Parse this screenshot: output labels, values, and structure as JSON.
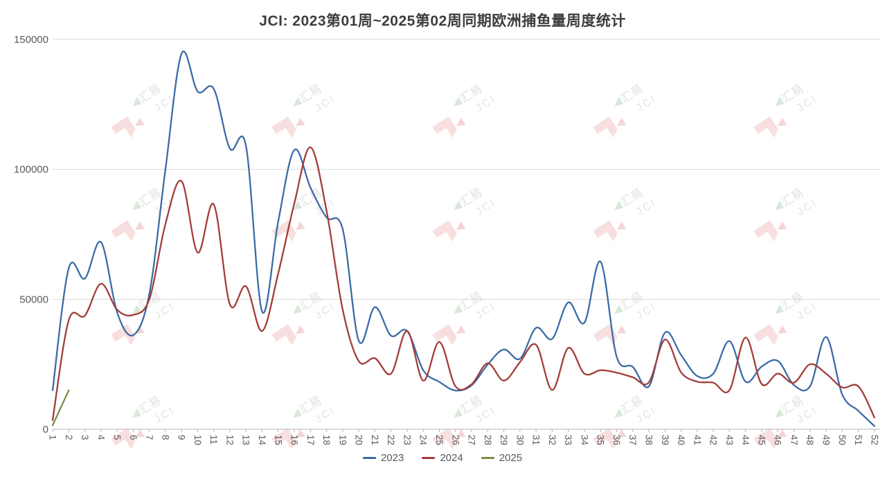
{
  "title": "JCI: 2023第01周~2025第02周同期欧洲捕鱼量周度统计",
  "watermark": {
    "cn": "汇易",
    "en": "JCI"
  },
  "legend": [
    {
      "label": "2023",
      "color": "#3A6BA5"
    },
    {
      "label": "2024",
      "color": "#A23C39"
    },
    {
      "label": "2025",
      "color": "#7C8B42"
    }
  ],
  "chart_data": {
    "type": "line",
    "title": "JCI: 2023第01周~2025第02周同期欧洲捕鱼量周度统计",
    "xlabel": "",
    "ylabel": "",
    "x": [
      1,
      2,
      3,
      4,
      5,
      6,
      7,
      8,
      9,
      10,
      11,
      12,
      13,
      14,
      15,
      16,
      17,
      18,
      19,
      20,
      21,
      22,
      23,
      24,
      25,
      26,
      27,
      28,
      29,
      30,
      31,
      32,
      33,
      34,
      35,
      36,
      37,
      38,
      39,
      40,
      41,
      42,
      43,
      44,
      45,
      46,
      47,
      48,
      49,
      50,
      51,
      52
    ],
    "x_tick_labels": [
      "1",
      "2",
      "3",
      "4",
      "5",
      "6",
      "7",
      "8",
      "9",
      "10",
      "11",
      "12",
      "13",
      "14",
      "15",
      "16",
      "17",
      "18",
      "19",
      "20",
      "21",
      "22",
      "23",
      "24",
      "25",
      "26",
      "27",
      "28",
      "29",
      "30",
      "31",
      "32",
      "33",
      "34",
      "35",
      "36",
      "37",
      "38",
      "39",
      "40",
      "41",
      "42",
      "43",
      "44",
      "45",
      "46",
      "47",
      "48",
      "49",
      "50",
      "51",
      "52"
    ],
    "y_ticks": [
      0,
      50000,
      100000,
      150000
    ],
    "y_tick_labels": [
      "0",
      "50000",
      "100000",
      "150000"
    ],
    "ylim": [
      0,
      150000
    ],
    "grid": "horizontal",
    "legend_position": "bottom",
    "series": [
      {
        "name": "2023",
        "color": "#3A6BA5",
        "values": [
          15000,
          62000,
          58000,
          72000,
          45000,
          36200,
          52000,
          100000,
          144500,
          130000,
          131000,
          108000,
          109000,
          45300,
          80000,
          107500,
          93000,
          81500,
          77000,
          34000,
          47000,
          36000,
          37800,
          22700,
          18200,
          14900,
          16900,
          24900,
          30700,
          27100,
          39000,
          34800,
          48800,
          41000,
          64500,
          28000,
          24000,
          16500,
          37200,
          28600,
          20500,
          21400,
          33900,
          18300,
          24100,
          26300,
          17000,
          16500,
          35500,
          13400,
          7100,
          1200
        ]
      },
      {
        "name": "2024",
        "color": "#A23C39",
        "values": [
          3500,
          42000,
          43700,
          56000,
          46000,
          44000,
          50000,
          79000,
          95500,
          68000,
          86500,
          48000,
          55000,
          37800,
          60000,
          87000,
          108500,
          84000,
          46000,
          26200,
          27300,
          21400,
          37800,
          18700,
          33600,
          16500,
          17300,
          25400,
          18700,
          25800,
          32500,
          15100,
          31300,
          21400,
          22700,
          21800,
          20000,
          18000,
          34500,
          21900,
          18300,
          17900,
          15000,
          35300,
          17400,
          21400,
          17900,
          25000,
          21400,
          16100,
          16500,
          4500
        ]
      },
      {
        "name": "2025",
        "color": "#7C8B42",
        "values": [
          1500,
          15000
        ]
      }
    ]
  }
}
